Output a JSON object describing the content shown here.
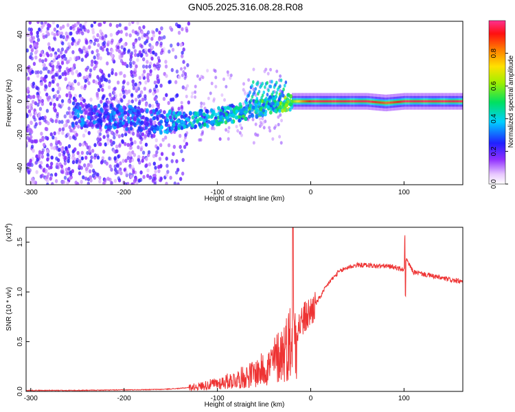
{
  "title": "GN05.2025.316.08.28.R08",
  "colors": {
    "snr_line": "#ee3333",
    "axis": "#000000",
    "blob_purple": "#7a2df0",
    "blob_blue": "#2030ff",
    "blob_cyan": "#10c8f0",
    "blob_green": "#20e040"
  },
  "chart_data": [
    {
      "type": "heatmap",
      "xlabel": "Height of straight line (km)",
      "ylabel": "Frequency (Hz)",
      "xlim": [
        -305,
        163
      ],
      "ylim": [
        -50,
        48
      ],
      "xticks": [
        -300,
        -200,
        -100,
        0,
        100
      ],
      "yticks": [
        40,
        20,
        0,
        -20,
        -40
      ],
      "grid": false,
      "colorbar": {
        "label": "Normalized spectral amplitude",
        "range": [
          0,
          1
        ],
        "ticks": [
          "0.0",
          "0.2",
          "0.4",
          "0.6",
          "0.8"
        ],
        "colormap": "rainbow"
      },
      "ridge": {
        "description_points_x": [
          -250,
          -210,
          -170,
          -140,
          -110,
          -80,
          -55,
          -35,
          -20,
          -10,
          0,
          30,
          60,
          80,
          100,
          130,
          163
        ],
        "freq_hz": [
          -8,
          -9,
          -12,
          -12,
          -10,
          -7,
          -4,
          -1,
          0,
          0,
          0,
          0,
          0,
          -1,
          0,
          0,
          0
        ],
        "amplitude": [
          0.3,
          0.3,
          0.32,
          0.38,
          0.42,
          0.45,
          0.5,
          0.5,
          0.6,
          0.85,
          1.0,
          1.0,
          1.0,
          0.9,
          1.0,
          1.0,
          1.0
        ]
      }
    },
    {
      "type": "line",
      "xlabel": "Height of straight line (km)",
      "ylabel": "SNR (10 * v/v)",
      "ylabel_multiplier": "(x10",
      "ylabel_multiplier_exp": "4",
      "ylabel_multiplier_close": ")",
      "xlim": [
        -305,
        163
      ],
      "ylim": [
        0,
        1.65
      ],
      "xticks": [
        -300,
        -200,
        -100,
        0,
        100
      ],
      "yticks": [
        "0.0",
        "0.5",
        "1.0",
        "1.5"
      ],
      "series": [
        {
          "x": [
            -305,
            -250,
            -200,
            -160,
            -140,
            -120,
            -100,
            -80,
            -60,
            -45,
            -35,
            -25,
            -20,
            -15,
            -10,
            -5,
            0,
            10,
            20,
            30,
            40,
            50,
            60,
            70,
            80,
            90,
            100,
            101,
            110,
            120,
            130,
            140,
            150,
            163
          ],
          "y": [
            0.01,
            0.01,
            0.015,
            0.02,
            0.03,
            0.05,
            0.08,
            0.12,
            0.18,
            0.25,
            0.35,
            0.45,
            0.55,
            0.62,
            0.7,
            0.75,
            0.8,
            0.95,
            1.1,
            1.2,
            1.25,
            1.27,
            1.27,
            1.26,
            1.26,
            1.25,
            1.22,
            1.35,
            1.2,
            1.18,
            1.16,
            1.14,
            1.12,
            1.1
          ]
        }
      ]
    }
  ]
}
